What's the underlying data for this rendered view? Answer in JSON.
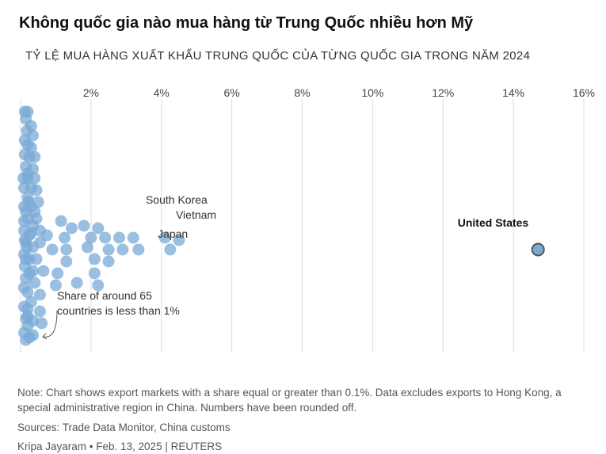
{
  "title": "Không quốc gia nào mua hàng từ Trung Quốc nhiều hơn Mỹ",
  "subtitle": "TỶ LỆ MUA HÀNG XUẤT KHẨU TRUNG QUỐC CỦA TỪNG QUỐC GIA TRONG NĂM 2024",
  "footnote": "Note: Chart shows export markets with a share equal or greater than 0.1%. Data excludes exports to Hong Kong, a special administrative region in China. Numbers have been rounded off.",
  "sources": "Sources: Trade Data Monitor, China customs",
  "credit": "Kripa Jayaram • Feb. 13, 2025 | REUTERS",
  "colors": {
    "dot": "#7aaad6",
    "dot_edge": "#4d82b8",
    "highlight_edge": "#555555",
    "grid": "#dddddd"
  },
  "chart_data": {
    "type": "scatter",
    "x_ticks": [
      "2%",
      "4%",
      "6%",
      "8%",
      "10%",
      "12%",
      "14%",
      "16%"
    ],
    "x_tick_values": [
      2,
      4,
      6,
      8,
      10,
      12,
      14,
      16
    ],
    "xlim": [
      0,
      16
    ],
    "grid": true,
    "annotation": "Share of around 65 countries is less than 1%",
    "labels": [
      {
        "text": "South Korea",
        "x": 3.6
      },
      {
        "text": "Vietnam",
        "x": 4.5
      },
      {
        "text": "Japan",
        "x": 4.3
      },
      {
        "text": "United States",
        "x": 14.7
      }
    ],
    "points": [
      {
        "x": 0.12,
        "y": 0.98
      },
      {
        "x": 0.2,
        "y": 0.98
      },
      {
        "x": 0.15,
        "y": 0.95
      },
      {
        "x": 0.3,
        "y": 0.92
      },
      {
        "x": 0.18,
        "y": 0.9
      },
      {
        "x": 0.35,
        "y": 0.88
      },
      {
        "x": 0.12,
        "y": 0.86
      },
      {
        "x": 0.2,
        "y": 0.84
      },
      {
        "x": 0.3,
        "y": 0.83
      },
      {
        "x": 0.12,
        "y": 0.8
      },
      {
        "x": 0.25,
        "y": 0.79
      },
      {
        "x": 0.4,
        "y": 0.79
      },
      {
        "x": 0.15,
        "y": 0.75
      },
      {
        "x": 0.35,
        "y": 0.74
      },
      {
        "x": 0.2,
        "y": 0.7
      },
      {
        "x": 0.4,
        "y": 0.7
      },
      {
        "x": 0.1,
        "y": 0.66
      },
      {
        "x": 0.3,
        "y": 0.66
      },
      {
        "x": 0.45,
        "y": 0.65
      },
      {
        "x": 0.2,
        "y": 0.62
      },
      {
        "x": 0.5,
        "y": 0.6
      },
      {
        "x": 0.1,
        "y": 0.58
      },
      {
        "x": 0.3,
        "y": 0.58
      },
      {
        "x": 0.15,
        "y": 0.56
      },
      {
        "x": 0.4,
        "y": 0.56
      },
      {
        "x": 0.2,
        "y": 0.53
      },
      {
        "x": 0.45,
        "y": 0.53
      },
      {
        "x": 0.35,
        "y": 0.5
      },
      {
        "x": 0.1,
        "y": 0.48
      },
      {
        "x": 0.55,
        "y": 0.48
      },
      {
        "x": 0.25,
        "y": 0.46
      },
      {
        "x": 0.75,
        "y": 0.46
      },
      {
        "x": 1.15,
        "y": 0.52
      },
      {
        "x": 1.45,
        "y": 0.49
      },
      {
        "x": 1.25,
        "y": 0.45
      },
      {
        "x": 1.8,
        "y": 0.5
      },
      {
        "x": 2.2,
        "y": 0.49
      },
      {
        "x": 2.0,
        "y": 0.45
      },
      {
        "x": 2.4,
        "y": 0.45
      },
      {
        "x": 2.8,
        "y": 0.45
      },
      {
        "x": 3.2,
        "y": 0.45
      },
      {
        "x": 4.1,
        "y": 0.45
      },
      {
        "x": 4.5,
        "y": 0.44
      },
      {
        "x": 0.15,
        "y": 0.43
      },
      {
        "x": 0.35,
        "y": 0.41
      },
      {
        "x": 0.55,
        "y": 0.43
      },
      {
        "x": 0.9,
        "y": 0.4
      },
      {
        "x": 1.3,
        "y": 0.4
      },
      {
        "x": 1.9,
        "y": 0.41
      },
      {
        "x": 2.5,
        "y": 0.4
      },
      {
        "x": 2.9,
        "y": 0.4
      },
      {
        "x": 3.35,
        "y": 0.4
      },
      {
        "x": 4.25,
        "y": 0.4
      },
      {
        "x": 0.1,
        "y": 0.38
      },
      {
        "x": 0.25,
        "y": 0.36
      },
      {
        "x": 0.45,
        "y": 0.36
      },
      {
        "x": 1.3,
        "y": 0.35
      },
      {
        "x": 2.1,
        "y": 0.36
      },
      {
        "x": 2.5,
        "y": 0.35
      },
      {
        "x": 0.12,
        "y": 0.33
      },
      {
        "x": 0.35,
        "y": 0.31
      },
      {
        "x": 0.65,
        "y": 0.31
      },
      {
        "x": 1.05,
        "y": 0.3
      },
      {
        "x": 2.1,
        "y": 0.3
      },
      {
        "x": 0.15,
        "y": 0.28
      },
      {
        "x": 0.4,
        "y": 0.26
      },
      {
        "x": 1.6,
        "y": 0.26
      },
      {
        "x": 1.0,
        "y": 0.25
      },
      {
        "x": 2.2,
        "y": 0.25
      },
      {
        "x": 0.2,
        "y": 0.22
      },
      {
        "x": 0.55,
        "y": 0.21
      },
      {
        "x": 0.3,
        "y": 0.18
      },
      {
        "x": 0.2,
        "y": 0.15
      },
      {
        "x": 0.55,
        "y": 0.14
      },
      {
        "x": 0.15,
        "y": 0.11
      },
      {
        "x": 0.35,
        "y": 0.1
      },
      {
        "x": 0.6,
        "y": 0.09
      },
      {
        "x": 0.2,
        "y": 0.08
      },
      {
        "x": 0.1,
        "y": 0.05
      },
      {
        "x": 0.35,
        "y": 0.04
      },
      {
        "x": 0.25,
        "y": 0.03
      },
      {
        "x": 0.15,
        "y": 0.02
      },
      {
        "x": 0.2,
        "y": 0.12
      },
      {
        "x": 0.1,
        "y": 0.16
      },
      {
        "x": 0.12,
        "y": 0.44
      },
      {
        "x": 0.18,
        "y": 0.41
      },
      {
        "x": 0.1,
        "y": 0.52
      },
      {
        "x": 0.22,
        "y": 0.6
      },
      {
        "x": 0.08,
        "y": 0.7
      },
      {
        "x": 0.2,
        "y": 0.72
      },
      {
        "x": 0.1,
        "y": 0.24
      },
      {
        "x": 0.25,
        "y": 0.3
      },
      {
        "x": 0.15,
        "y": 0.36
      },
      {
        "x": 0.3,
        "y": 0.47
      },
      {
        "x": 14.7,
        "y": 0.4,
        "highlight": true
      }
    ]
  }
}
